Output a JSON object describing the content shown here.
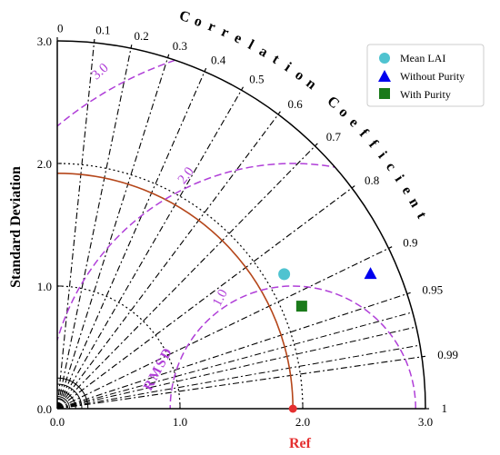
{
  "chart_data": {
    "type": "scatter",
    "subtype": "taylor-diagram",
    "xlabel": "Ref",
    "ylabel": "Standard Deviation",
    "arc_label": "Correlation Coefficient",
    "rmsd_label": "RMSD",
    "std_ticks": [
      "0.0",
      "1.0",
      "2.0",
      "3.0"
    ],
    "std_range": [
      0,
      3.0
    ],
    "corr_ticks": [
      "0",
      "0.1",
      "0.2",
      "0.3",
      "0.4",
      "0.5",
      "0.6",
      "0.7",
      "0.8",
      "0.9",
      "0.95",
      "0.99",
      "1"
    ],
    "rmsd_ticks": [
      "1.0",
      "2.0",
      "3.0"
    ],
    "reference_std": 1.92,
    "series": [
      {
        "name": "Mean LAI",
        "marker": "circle",
        "color": "#4fc3d0",
        "std": 2.15,
        "corr": 0.86
      },
      {
        "name": "Without Purity",
        "marker": "triangle",
        "color": "#0000ee",
        "std": 2.78,
        "corr": 0.918
      },
      {
        "name": "With Purity",
        "marker": "square",
        "color": "#1a7a1a",
        "std": 2.16,
        "corr": 0.922
      }
    ],
    "colors": {
      "ref_arc": "#b5461a",
      "ref_point": "#e53030",
      "rmsd": "#b03fd8"
    },
    "legend_position": "top-right"
  }
}
